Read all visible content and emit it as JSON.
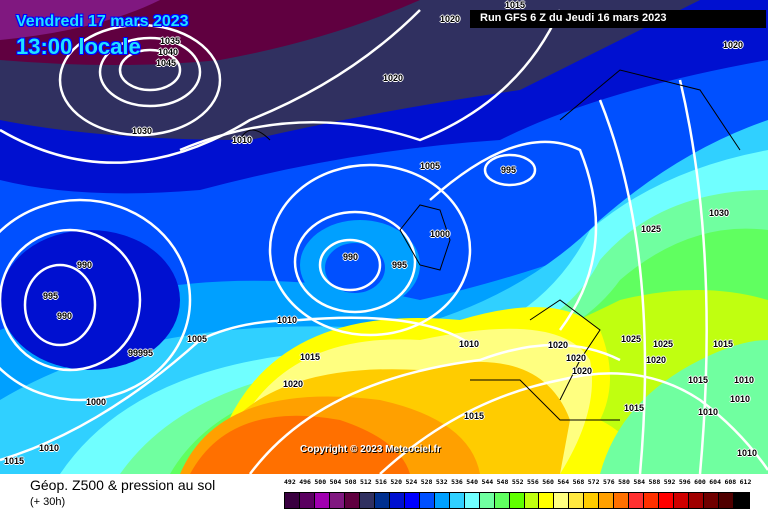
{
  "header": {
    "date": "Vendredi 17 mars 2023",
    "time": "13:00 locale",
    "run": "Run GFS 6 Z du Jeudi 16 mars 2023"
  },
  "copyright": "Copyright © 2023 Meteociel.fr",
  "footer": {
    "title": "Géop. Z500 & pression au sol",
    "lead": "(+ 30h)"
  },
  "scale": {
    "labels": [
      "492",
      "496",
      "500",
      "504",
      "508",
      "512",
      "516",
      "520",
      "524",
      "528",
      "532",
      "536",
      "540",
      "544",
      "548",
      "552",
      "556",
      "560",
      "564",
      "568",
      "572",
      "576",
      "580",
      "584",
      "588",
      "592",
      "596",
      "600",
      "604",
      "608",
      "612"
    ],
    "colors": [
      "#3a0040",
      "#5a0060",
      "#a000b0",
      "#801880",
      "#600040",
      "#303060",
      "#003090",
      "#0010d0",
      "#0000ff",
      "#0050ff",
      "#00a0ff",
      "#30d0ff",
      "#70ffff",
      "#70ffa0",
      "#60ff60",
      "#60ff00",
      "#c0ff10",
      "#ffff00",
      "#ffff80",
      "#ffe840",
      "#ffcc00",
      "#ffa000",
      "#ff7000",
      "#ff3030",
      "#ff3000",
      "#ff0000",
      "#d00000",
      "#a00000",
      "#700000",
      "#500000",
      "#000000"
    ]
  },
  "pressure_labels": [
    "1015",
    "1020",
    "1020",
    "1035",
    "1040",
    "1045",
    "1020",
    "1030",
    "1010",
    "1005",
    "995",
    "1030",
    "1025",
    "1000",
    "990",
    "990",
    "995",
    "995",
    "990",
    "1010",
    "1005",
    "99995",
    "1015",
    "1010",
    "1025",
    "1025",
    "1015",
    "1020",
    "1020",
    "1020",
    "1020",
    "1015",
    "1010",
    "1020",
    "1000",
    "1015",
    "1010",
    "1010",
    "1015",
    "1010",
    "1015",
    "1010"
  ]
}
